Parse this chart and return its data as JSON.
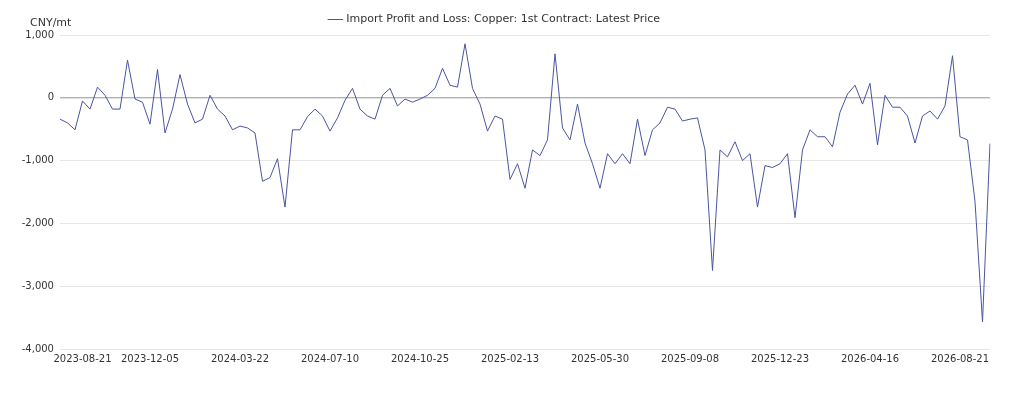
{
  "chart_data": {
    "type": "line",
    "ylabel": "CNY/mt",
    "categories": [
      null,
      null,
      null,
      "2023-08-21",
      null,
      null,
      null,
      null,
      null,
      null,
      null,
      null,
      "2023-12-05",
      null,
      null,
      null,
      null,
      null,
      null,
      null,
      null,
      null,
      null,
      null,
      "2024-03-22",
      null,
      null,
      null,
      null,
      null,
      null,
      null,
      null,
      null,
      null,
      null,
      "2024-07-10",
      null,
      null,
      null,
      null,
      null,
      null,
      null,
      null,
      null,
      null,
      null,
      "2024-10-25",
      null,
      null,
      null,
      null,
      null,
      null,
      null,
      null,
      null,
      null,
      null,
      "2025-02-13",
      null,
      null,
      null,
      null,
      null,
      null,
      null,
      null,
      null,
      null,
      null,
      "2025-05-30",
      null,
      null,
      null,
      null,
      null,
      null,
      null,
      null,
      null,
      null,
      null,
      "2025-09-08",
      null,
      null,
      null,
      null,
      null,
      null,
      null,
      null,
      null,
      null,
      null,
      "2025-12-23",
      null,
      null,
      null,
      null,
      null,
      null,
      null,
      null,
      null,
      null,
      null,
      "2026-04-16",
      null,
      null,
      null,
      null,
      null,
      null,
      null,
      null,
      null,
      null,
      null,
      "2026-08-21",
      null,
      null,
      null,
      null
    ],
    "series": [
      {
        "name": "Import Profit and Loss: Copper: 1st Contract: Latest Price",
        "color": "#4b55a0",
        "values": [
          -340,
          -400,
          -510,
          -50,
          -180,
          170,
          40,
          -180,
          -180,
          600,
          -20,
          -70,
          -420,
          450,
          -560,
          -180,
          370,
          -100,
          -400,
          -340,
          40,
          -180,
          -290,
          -510,
          -450,
          -480,
          -560,
          -1330,
          -1270,
          -970,
          -1740,
          -510,
          -510,
          -300,
          -180,
          -290,
          -530,
          -320,
          -40,
          150,
          -180,
          -290,
          -340,
          40,
          150,
          -130,
          -20,
          -70,
          -20,
          40,
          150,
          470,
          200,
          170,
          860,
          150,
          -100,
          -530,
          -290,
          -340,
          -1300,
          -1050,
          -1440,
          -830,
          -920,
          -670,
          700,
          -480,
          -670,
          -100,
          -720,
          -1050,
          -1440,
          -890,
          -1050,
          -890,
          -1050,
          -340,
          -920,
          -510,
          -400,
          -150,
          -180,
          -370,
          -340,
          -320,
          -830,
          -2750,
          -830,
          -940,
          -700,
          -1000,
          -890,
          -1740,
          -1080,
          -1110,
          -1050,
          -890,
          -1910,
          -830,
          -510,
          -620,
          -620,
          -780,
          -230,
          60,
          200,
          -100,
          230,
          -750,
          40,
          -150,
          -150,
          -290,
          -720,
          -290,
          -210,
          -340,
          -130,
          670,
          -620,
          -670,
          -1650,
          -3570,
          -730
        ]
      }
    ],
    "ylim": [
      -4000,
      1000
    ],
    "yticks": [
      {
        "value": -4000,
        "label": "-4,000"
      },
      {
        "value": -3000,
        "label": "-3,000"
      },
      {
        "value": -2000,
        "label": "-2,000"
      },
      {
        "value": -1000,
        "label": "-1,000"
      },
      0,
      {
        "value": 1000,
        "label": "1,000"
      }
    ],
    "grid": "y",
    "legend": "top",
    "marker": "none",
    "line_style": "solid",
    "ref_lines": [
      {
        "axis": "y",
        "value": 0,
        "color": "#9a9a9a"
      }
    ]
  }
}
